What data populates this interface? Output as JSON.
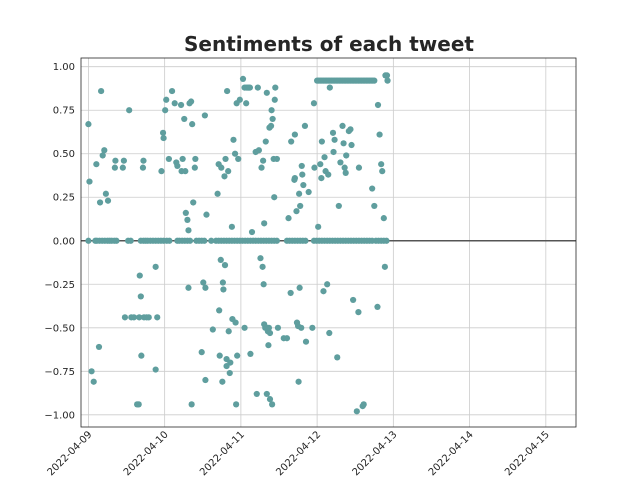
{
  "chart_data": {
    "type": "scatter",
    "title": "Sentiments of each tweet",
    "xlabel": "",
    "ylabel": "",
    "x_ticks": [
      "2022-04-09",
      "2022-04-10",
      "2022-04-11",
      "2022-04-12",
      "2022-04-13",
      "2022-04-14",
      "2022-04-15"
    ],
    "xlim": [
      "2022-04-08 21:40",
      "2022-04-15 09:30"
    ],
    "y_ticks": [
      "1.00",
      "0.75",
      "0.50",
      "0.25",
      "0.00",
      "−0.25",
      "−0.50",
      "−0.75",
      "−1.00"
    ],
    "ylim": [
      -1.07,
      1.05
    ],
    "grid": true,
    "reference_line_y": 0,
    "point_color": "#5f9e9e",
    "points": [
      {
        "x": "2022-04-09 00:00",
        "y": 0.67
      },
      {
        "x": "2022-04-09 00:20",
        "y": 0.34
      },
      {
        "x": "2022-04-09 01:00",
        "y": -0.75
      },
      {
        "x": "2022-04-09 01:40",
        "y": -0.81
      },
      {
        "x": "2022-04-09 02:30",
        "y": 0.44
      },
      {
        "x": "2022-04-09 03:20",
        "y": -0.61
      },
      {
        "x": "2022-04-09 03:40",
        "y": 0.22
      },
      {
        "x": "2022-04-09 04:00",
        "y": 0.86
      },
      {
        "x": "2022-04-09 04:30",
        "y": 0.49
      },
      {
        "x": "2022-04-09 05:00",
        "y": 0.52
      },
      {
        "x": "2022-04-09 05:30",
        "y": 0.27
      },
      {
        "x": "2022-04-09 06:10",
        "y": 0.23
      },
      {
        "x": "2022-04-09 08:20",
        "y": 0.42
      },
      {
        "x": "2022-04-09 08:30",
        "y": 0.46
      },
      {
        "x": "2022-04-09 10:50",
        "y": 0.42
      },
      {
        "x": "2022-04-09 11:10",
        "y": 0.46
      },
      {
        "x": "2022-04-09 11:30",
        "y": -0.44
      },
      {
        "x": "2022-04-09 12:50",
        "y": 0.75
      },
      {
        "x": "2022-04-09 13:30",
        "y": -0.44
      },
      {
        "x": "2022-04-09 14:20",
        "y": -0.44
      },
      {
        "x": "2022-04-09 15:20",
        "y": -0.94
      },
      {
        "x": "2022-04-09 15:50",
        "y": -0.94
      },
      {
        "x": "2022-04-09 16:10",
        "y": -0.2
      },
      {
        "x": "2022-04-09 16:30",
        "y": -0.32
      },
      {
        "x": "2022-04-09 16:40",
        "y": -0.66
      },
      {
        "x": "2022-04-09 17:10",
        "y": 0.42
      },
      {
        "x": "2022-04-09 17:20",
        "y": 0.46
      },
      {
        "x": "2022-04-09 16:00",
        "y": -0.44
      },
      {
        "x": "2022-04-09 17:30",
        "y": -0.44
      },
      {
        "x": "2022-04-09 18:20",
        "y": -0.44
      },
      {
        "x": "2022-04-09 19:00",
        "y": -0.44
      },
      {
        "x": "2022-04-09 21:10",
        "y": -0.15
      },
      {
        "x": "2022-04-09 21:10",
        "y": -0.74
      },
      {
        "x": "2022-04-09 21:40",
        "y": -0.44
      },
      {
        "x": "2022-04-09 23:00",
        "y": 0.4
      },
      {
        "x": "2022-04-09 23:30",
        "y": 0.62
      },
      {
        "x": "2022-04-09 23:40",
        "y": 0.59
      },
      {
        "x": "2022-04-10 00:10",
        "y": 0.75
      },
      {
        "x": "2022-04-10 00:30",
        "y": 0.81
      },
      {
        "x": "2022-04-10 01:20",
        "y": 0.47
      },
      {
        "x": "2022-04-10 02:20",
        "y": 0.86
      },
      {
        "x": "2022-04-10 03:10",
        "y": 0.79
      },
      {
        "x": "2022-04-10 03:40",
        "y": 0.45
      },
      {
        "x": "2022-04-10 04:00",
        "y": 0.43
      },
      {
        "x": "2022-04-10 05:10",
        "y": 0.78
      },
      {
        "x": "2022-04-10 05:20",
        "y": 0.4
      },
      {
        "x": "2022-04-10 05:40",
        "y": 0.47
      },
      {
        "x": "2022-04-10 06:10",
        "y": 0.7
      },
      {
        "x": "2022-04-10 06:30",
        "y": 0.4
      },
      {
        "x": "2022-04-10 07:50",
        "y": 0.79
      },
      {
        "x": "2022-04-10 08:20",
        "y": 0.8
      },
      {
        "x": "2022-04-10 06:40",
        "y": 0.16
      },
      {
        "x": "2022-04-10 07:10",
        "y": 0.12
      },
      {
        "x": "2022-04-10 07:30",
        "y": 0.06
      },
      {
        "x": "2022-04-10 07:30",
        "y": -0.27
      },
      {
        "x": "2022-04-10 08:30",
        "y": -0.94
      },
      {
        "x": "2022-04-10 08:40",
        "y": 0.67
      },
      {
        "x": "2022-04-10 09:00",
        "y": 0.22
      },
      {
        "x": "2022-04-10 09:30",
        "y": 0.42
      },
      {
        "x": "2022-04-10 09:40",
        "y": 0.47
      },
      {
        "x": "2022-04-10 11:40",
        "y": -0.64
      },
      {
        "x": "2022-04-10 12:10",
        "y": -0.24
      },
      {
        "x": "2022-04-10 12:50",
        "y": -0.27
      },
      {
        "x": "2022-04-10 12:50",
        "y": -0.8
      },
      {
        "x": "2022-04-10 13:10",
        "y": 0.15
      },
      {
        "x": "2022-04-10 12:40",
        "y": 0.72
      },
      {
        "x": "2022-04-10 15:10",
        "y": -0.51
      },
      {
        "x": "2022-04-10 16:40",
        "y": 0.27
      },
      {
        "x": "2022-04-10 17:00",
        "y": 0.44
      },
      {
        "x": "2022-04-10 17:10",
        "y": -0.4
      },
      {
        "x": "2022-04-10 17:20",
        "y": -0.66
      },
      {
        "x": "2022-04-10 17:40",
        "y": -0.11
      },
      {
        "x": "2022-04-10 17:50",
        "y": 0.42
      },
      {
        "x": "2022-04-10 18:10",
        "y": -0.81
      },
      {
        "x": "2022-04-10 18:20",
        "y": -0.24
      },
      {
        "x": "2022-04-10 18:30",
        "y": -0.28
      },
      {
        "x": "2022-04-10 18:50",
        "y": 0.37
      },
      {
        "x": "2022-04-10 19:00",
        "y": -0.14
      },
      {
        "x": "2022-04-10 19:10",
        "y": 0.47
      },
      {
        "x": "2022-04-10 19:30",
        "y": -0.72
      },
      {
        "x": "2022-04-10 19:30",
        "y": -0.68
      },
      {
        "x": "2022-04-10 19:40",
        "y": 0.86
      },
      {
        "x": "2022-04-10 20:00",
        "y": 0.4
      },
      {
        "x": "2022-04-10 20:10",
        "y": -0.52
      },
      {
        "x": "2022-04-10 20:30",
        "y": -0.76
      },
      {
        "x": "2022-04-10 20:40",
        "y": -0.7
      },
      {
        "x": "2022-04-10 21:10",
        "y": 0.08
      },
      {
        "x": "2022-04-10 21:20",
        "y": -0.45
      },
      {
        "x": "2022-04-10 21:40",
        "y": 0.58
      },
      {
        "x": "2022-04-10 22:10",
        "y": 0.5
      },
      {
        "x": "2022-04-10 22:20",
        "y": -0.47
      },
      {
        "x": "2022-04-10 22:30",
        "y": -0.94
      },
      {
        "x": "2022-04-10 22:40",
        "y": 0.79
      },
      {
        "x": "2022-04-10 22:50",
        "y": -0.66
      },
      {
        "x": "2022-04-10 23:10",
        "y": 0.47
      },
      {
        "x": "2022-04-10 23:40",
        "y": 0.81
      },
      {
        "x": "2022-04-11 00:40",
        "y": 0.93
      },
      {
        "x": "2022-04-11 01:10",
        "y": 0.88
      },
      {
        "x": "2022-04-11 01:40",
        "y": 0.88
      },
      {
        "x": "2022-04-11 02:10",
        "y": 0.88
      },
      {
        "x": "2022-04-11 02:30",
        "y": 0.88
      },
      {
        "x": "2022-04-11 02:50",
        "y": 0.88
      },
      {
        "x": "2022-04-11 01:40",
        "y": 0.79
      },
      {
        "x": "2022-04-11 01:10",
        "y": -0.5
      },
      {
        "x": "2022-04-11 03:00",
        "y": -0.65
      },
      {
        "x": "2022-04-11 03:30",
        "y": 0.05
      },
      {
        "x": "2022-04-11 04:40",
        "y": 0.51
      },
      {
        "x": "2022-04-11 05:00",
        "y": -0.88
      },
      {
        "x": "2022-04-11 05:20",
        "y": 0.88
      },
      {
        "x": "2022-04-11 05:40",
        "y": 0.52
      },
      {
        "x": "2022-04-11 06:30",
        "y": 0.42
      },
      {
        "x": "2022-04-11 07:00",
        "y": 0.46
      },
      {
        "x": "2022-04-11 06:10",
        "y": -0.1
      },
      {
        "x": "2022-04-11 06:50",
        "y": -0.15
      },
      {
        "x": "2022-04-11 07:10",
        "y": -0.25
      },
      {
        "x": "2022-04-11 07:20",
        "y": -0.48
      },
      {
        "x": "2022-04-11 07:40",
        "y": -0.5
      },
      {
        "x": "2022-04-11 08:00",
        "y": -0.5
      },
      {
        "x": "2022-04-11 08:20",
        "y": -0.5
      },
      {
        "x": "2022-04-11 08:30",
        "y": -0.52
      },
      {
        "x": "2022-04-11 08:50",
        "y": -0.5
      },
      {
        "x": "2022-04-11 09:10",
        "y": -0.53
      },
      {
        "x": "2022-04-11 07:20",
        "y": 0.1
      },
      {
        "x": "2022-04-11 07:50",
        "y": 0.57
      },
      {
        "x": "2022-04-11 08:10",
        "y": 0.85
      },
      {
        "x": "2022-04-11 08:40",
        "y": -0.6
      },
      {
        "x": "2022-04-11 08:10",
        "y": -0.88
      },
      {
        "x": "2022-04-11 09:00",
        "y": 0.65
      },
      {
        "x": "2022-04-11 09:10",
        "y": -0.91
      },
      {
        "x": "2022-04-11 09:30",
        "y": 0.66
      },
      {
        "x": "2022-04-11 09:40",
        "y": 0.75
      },
      {
        "x": "2022-04-11 10:00",
        "y": 0.7
      },
      {
        "x": "2022-04-11 10:20",
        "y": 0.47
      },
      {
        "x": "2022-04-11 10:30",
        "y": 0.25
      },
      {
        "x": "2022-04-11 09:50",
        "y": -0.94
      },
      {
        "x": "2022-04-11 10:50",
        "y": 0.88
      },
      {
        "x": "2022-04-11 11:20",
        "y": 0.47
      },
      {
        "x": "2022-04-11 11:40",
        "y": -0.5
      },
      {
        "x": "2022-04-11 10:40",
        "y": 0.81
      },
      {
        "x": "2022-04-11 13:30",
        "y": -0.56
      },
      {
        "x": "2022-04-11 14:30",
        "y": -0.56
      },
      {
        "x": "2022-04-11 15:00",
        "y": 0.13
      },
      {
        "x": "2022-04-11 15:40",
        "y": -0.3
      },
      {
        "x": "2022-04-11 15:50",
        "y": 0.57
      },
      {
        "x": "2022-04-11 17:00",
        "y": 0.61
      },
      {
        "x": "2022-04-11 16:50",
        "y": 0.35
      },
      {
        "x": "2022-04-11 17:00",
        "y": 0.36
      },
      {
        "x": "2022-04-11 17:30",
        "y": 0.17
      },
      {
        "x": "2022-04-11 17:40",
        "y": -0.47
      },
      {
        "x": "2022-04-11 18:00",
        "y": -0.49
      },
      {
        "x": "2022-04-11 18:10",
        "y": -0.81
      },
      {
        "x": "2022-04-11 18:20",
        "y": 0.27
      },
      {
        "x": "2022-04-11 18:30",
        "y": -0.27
      },
      {
        "x": "2022-04-11 18:40",
        "y": 0.2
      },
      {
        "x": "2022-04-11 19:00",
        "y": -0.5
      },
      {
        "x": "2022-04-11 19:10",
        "y": 0.43
      },
      {
        "x": "2022-04-11 19:20",
        "y": 0.38
      },
      {
        "x": "2022-04-11 19:40",
        "y": 0.32
      },
      {
        "x": "2022-04-11 20:10",
        "y": 0.66
      },
      {
        "x": "2022-04-11 20:30",
        "y": -0.58
      },
      {
        "x": "2022-04-11 21:20",
        "y": 0.28
      },
      {
        "x": "2022-04-11 22:30",
        "y": -0.5
      },
      {
        "x": "2022-04-11 23:00",
        "y": 0.79
      },
      {
        "x": "2022-04-11 23:10",
        "y": 0.42
      },
      {
        "x": "2022-04-12 00:20",
        "y": 0.08
      },
      {
        "x": "2022-04-12 02:00",
        "y": -0.29
      },
      {
        "x": "2022-04-12 02:40",
        "y": 0.4
      },
      {
        "x": "2022-04-12 03:10",
        "y": -0.25
      },
      {
        "x": "2022-04-12 03:50",
        "y": -0.53
      },
      {
        "x": "2022-04-12 04:00",
        "y": 0.88
      },
      {
        "x": "2022-04-12 05:00",
        "y": 0.62
      },
      {
        "x": "2022-04-12 05:30",
        "y": 0.58
      },
      {
        "x": "2022-04-12 06:20",
        "y": -0.67
      },
      {
        "x": "2022-04-12 06:50",
        "y": 0.2
      },
      {
        "x": "2022-04-12 07:20",
        "y": 0.45
      },
      {
        "x": "2022-04-12 08:00",
        "y": 0.66
      },
      {
        "x": "2022-04-12 08:20",
        "y": 0.56
      },
      {
        "x": "2022-04-12 09:10",
        "y": 0.49
      },
      {
        "x": "2022-04-12 10:00",
        "y": 0.63
      },
      {
        "x": "2022-04-12 10:30",
        "y": 0.64
      },
      {
        "x": "2022-04-12 10:50",
        "y": 0.55
      },
      {
        "x": "2022-04-12 11:20",
        "y": -0.34
      },
      {
        "x": "2022-04-12 12:30",
        "y": -0.98
      },
      {
        "x": "2022-04-12 13:00",
        "y": -0.41
      },
      {
        "x": "2022-04-12 13:10",
        "y": 0.42
      },
      {
        "x": "2022-04-12 14:20",
        "y": -0.95
      },
      {
        "x": "2022-04-12 14:40",
        "y": -0.94
      },
      {
        "x": "2022-04-12 17:20",
        "y": 0.3
      },
      {
        "x": "2022-04-12 18:00",
        "y": 0.2
      },
      {
        "x": "2022-04-12 19:00",
        "y": -0.38
      },
      {
        "x": "2022-04-12 19:10",
        "y": 0.78
      },
      {
        "x": "2022-04-12 19:40",
        "y": 0.61
      },
      {
        "x": "2022-04-12 20:10",
        "y": 0.44
      },
      {
        "x": "2022-04-12 20:30",
        "y": 0.4
      },
      {
        "x": "2022-04-12 21:00",
        "y": 0.13
      },
      {
        "x": "2022-04-12 21:20",
        "y": -0.15
      },
      {
        "x": "2022-04-12 21:30",
        "y": 0.95
      },
      {
        "x": "2022-04-12 22:00",
        "y": 0.95
      },
      {
        "x": "2022-04-12 22:10",
        "y": 0.92
      },
      {
        "x": "2022-04-12 01:00",
        "y": 0.44
      },
      {
        "x": "2022-04-12 01:20",
        "y": 0.36
      },
      {
        "x": "2022-04-12 01:30",
        "y": 0.57
      },
      {
        "x": "2022-04-12 03:30",
        "y": 0.38
      },
      {
        "x": "2022-04-12 05:10",
        "y": 0.51
      },
      {
        "x": "2022-04-12 08:40",
        "y": 0.42
      },
      {
        "x": "2022-04-12 09:00",
        "y": 0.39
      },
      {
        "x": "2022-04-12 02:20",
        "y": 0.48
      }
    ],
    "cluster_0": {
      "y": 0.0,
      "x": [
        "2022-04-09 00:00",
        "2022-04-09 02:10",
        "2022-04-09 02:40",
        "2022-04-09 03:30",
        "2022-04-09 04:20",
        "2022-04-09 05:10",
        "2022-04-09 06:00",
        "2022-04-09 06:40",
        "2022-04-09 07:20",
        "2022-04-09 08:10",
        "2022-04-09 08:50",
        "2022-04-09 12:30",
        "2022-04-09 13:20",
        "2022-04-09 16:30",
        "2022-04-09 17:20",
        "2022-04-09 18:00",
        "2022-04-09 18:40",
        "2022-04-09 19:30",
        "2022-04-09 20:20",
        "2022-04-09 21:10",
        "2022-04-09 22:00",
        "2022-04-09 22:50",
        "2022-04-09 23:40",
        "2022-04-10 00:40",
        "2022-04-10 01:30",
        "2022-04-10 04:00",
        "2022-04-10 04:40",
        "2022-04-10 05:30",
        "2022-04-10 06:20",
        "2022-04-10 07:10",
        "2022-04-10 08:00",
        "2022-04-10 10:00",
        "2022-04-10 10:50",
        "2022-04-10 11:40",
        "2022-04-10 12:30",
        "2022-04-10 14:40",
        "2022-04-10 16:10",
        "2022-04-10 17:00",
        "2022-04-10 17:50",
        "2022-04-10 18:40",
        "2022-04-10 19:30",
        "2022-04-10 20:20",
        "2022-04-10 21:10",
        "2022-04-10 22:00",
        "2022-04-10 22:50",
        "2022-04-10 23:40",
        "2022-04-11 00:30",
        "2022-04-11 01:20",
        "2022-04-11 02:10",
        "2022-04-11 03:00",
        "2022-04-11 03:50",
        "2022-04-11 04:40",
        "2022-04-11 05:30",
        "2022-04-11 06:20",
        "2022-04-11 07:10",
        "2022-04-11 08:00",
        "2022-04-11 08:50",
        "2022-04-11 09:40",
        "2022-04-11 10:30",
        "2022-04-11 11:20",
        "2022-04-11 14:30",
        "2022-04-11 15:20",
        "2022-04-11 16:10",
        "2022-04-11 17:00",
        "2022-04-11 17:50",
        "2022-04-11 18:40",
        "2022-04-11 19:30",
        "2022-04-11 20:20",
        "2022-04-11 23:00",
        "2022-04-11 23:50",
        "2022-04-12 00:40",
        "2022-04-12 01:30",
        "2022-04-12 02:20",
        "2022-04-12 03:10",
        "2022-04-12 04:00",
        "2022-04-12 04:50",
        "2022-04-12 05:40",
        "2022-04-12 06:30",
        "2022-04-12 07:20",
        "2022-04-12 08:10",
        "2022-04-12 09:00",
        "2022-04-12 09:50",
        "2022-04-12 10:40",
        "2022-04-12 11:30",
        "2022-04-12 12:20",
        "2022-04-12 13:10",
        "2022-04-12 14:00",
        "2022-04-12 14:50",
        "2022-04-12 15:40",
        "2022-04-12 16:30",
        "2022-04-12 17:20",
        "2022-04-12 18:30",
        "2022-04-12 19:20",
        "2022-04-12 20:10",
        "2022-04-12 21:00",
        "2022-04-12 21:50"
      ]
    },
    "cluster_092": {
      "y": 0.92,
      "x": [
        "2022-04-12 00:00",
        "2022-04-12 00:30",
        "2022-04-12 01:00",
        "2022-04-12 01:30",
        "2022-04-12 02:00",
        "2022-04-12 02:30",
        "2022-04-12 03:00",
        "2022-04-12 03:30",
        "2022-04-12 04:00",
        "2022-04-12 04:30",
        "2022-04-12 05:00",
        "2022-04-12 05:30",
        "2022-04-12 06:00",
        "2022-04-12 06:30",
        "2022-04-12 07:00",
        "2022-04-12 07:30",
        "2022-04-12 08:00",
        "2022-04-12 08:30",
        "2022-04-12 09:00",
        "2022-04-12 09:30",
        "2022-04-12 10:00",
        "2022-04-12 10:30",
        "2022-04-12 11:00",
        "2022-04-12 11:30",
        "2022-04-12 12:00",
        "2022-04-12 12:30",
        "2022-04-12 13:00",
        "2022-04-12 13:30",
        "2022-04-12 14:00",
        "2022-04-12 14:30",
        "2022-04-12 15:00",
        "2022-04-12 15:30",
        "2022-04-12 16:00",
        "2022-04-12 16:30",
        "2022-04-12 17:00",
        "2022-04-12 17:30",
        "2022-04-12 18:00"
      ]
    }
  }
}
